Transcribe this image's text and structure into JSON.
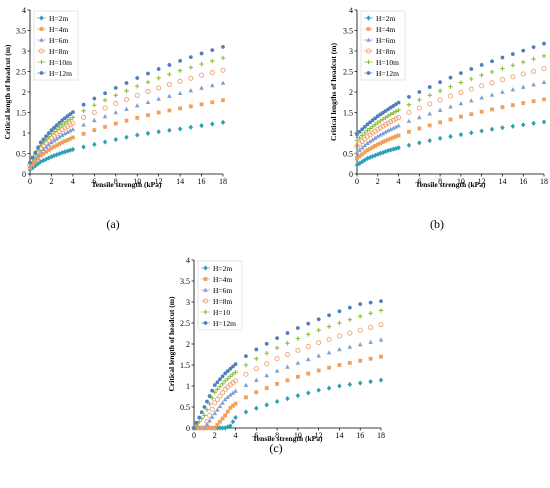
{
  "chart_data": [
    {
      "type": "scatter",
      "panel_label": "(a)",
      "xlabel": "Tensile strength (kPa)",
      "ylabel": "Critical length of headcut (m)",
      "xlim": [
        0,
        18
      ],
      "ylim": [
        0,
        4
      ],
      "xticks": [
        "0",
        "2",
        "4",
        "6",
        "8",
        "10",
        "12",
        "14",
        "16",
        "18"
      ],
      "yticks": [
        "0",
        "0.5",
        "1",
        "1.5",
        "2",
        "2.5",
        "3",
        "3.5",
        "4"
      ],
      "grid": false,
      "legend_position": "top-left",
      "x": [
        0,
        1,
        2,
        3,
        4,
        5,
        6,
        8,
        10,
        12,
        14,
        16,
        18
      ],
      "series": [
        {
          "name": "H=2m",
          "color": "#2e9fb5",
          "marker": "diamond",
          "values": [
            0.1,
            0.3,
            0.42,
            0.52,
            0.6,
            0.66,
            0.72,
            0.84,
            0.95,
            1.03,
            1.1,
            1.18,
            1.26
          ]
        },
        {
          "name": "H=4m",
          "color": "#f0a05a",
          "marker": "square",
          "values": [
            0.15,
            0.45,
            0.63,
            0.77,
            0.89,
            0.98,
            1.07,
            1.23,
            1.37,
            1.5,
            1.6,
            1.7,
            1.8
          ]
        },
        {
          "name": "H=6m",
          "color": "#7f9fd2",
          "marker": "triangle",
          "values": [
            0.2,
            0.55,
            0.77,
            0.95,
            1.09,
            1.2,
            1.31,
            1.5,
            1.67,
            1.83,
            1.97,
            2.1,
            2.22
          ]
        },
        {
          "name": "H=8m",
          "color": "#f2a070",
          "marker": "circle",
          "values": [
            0.23,
            0.63,
            0.88,
            1.08,
            1.24,
            1.38,
            1.5,
            1.72,
            1.92,
            2.1,
            2.26,
            2.41,
            2.53
          ]
        },
        {
          "name": "H=10m",
          "color": "#8fbc3c",
          "marker": "plus",
          "values": [
            0.26,
            0.7,
            0.98,
            1.2,
            1.38,
            1.54,
            1.68,
            1.92,
            2.14,
            2.34,
            2.52,
            2.68,
            2.83
          ]
        },
        {
          "name": "H=12m",
          "color": "#4f7fbd",
          "marker": "dot",
          "values": [
            0.28,
            0.77,
            1.07,
            1.31,
            1.51,
            1.69,
            1.84,
            2.1,
            2.34,
            2.56,
            2.76,
            2.94,
            3.1
          ]
        }
      ]
    },
    {
      "type": "scatter",
      "panel_label": "(b)",
      "xlabel": "Tensile strength (kPa)",
      "ylabel": "Critical lengths of headcut (m)",
      "xlim": [
        0,
        18
      ],
      "ylim": [
        0,
        4
      ],
      "xticks": [
        "0",
        "2",
        "4",
        "6",
        "8",
        "10",
        "12",
        "14",
        "16",
        "18"
      ],
      "yticks": [
        "0",
        "0.5",
        "1",
        "1.5",
        "2",
        "2.5",
        "3",
        "3.5",
        "4"
      ],
      "grid": false,
      "legend_position": "top-left",
      "x": [
        0,
        1,
        2,
        3,
        4,
        5,
        6,
        8,
        10,
        12,
        14,
        16,
        18
      ],
      "series": [
        {
          "name": "H=2m",
          "color": "#2e9fb5",
          "marker": "diamond",
          "values": [
            0.22,
            0.38,
            0.48,
            0.57,
            0.64,
            0.7,
            0.76,
            0.87,
            0.96,
            1.05,
            1.13,
            1.2,
            1.27
          ]
        },
        {
          "name": "H=4m",
          "color": "#f0a05a",
          "marker": "square",
          "values": [
            0.38,
            0.58,
            0.72,
            0.84,
            0.94,
            1.03,
            1.11,
            1.26,
            1.4,
            1.52,
            1.63,
            1.73,
            1.82
          ]
        },
        {
          "name": "H=6m",
          "color": "#7f9fd2",
          "marker": "triangle",
          "values": [
            0.53,
            0.75,
            0.92,
            1.06,
            1.18,
            1.29,
            1.38,
            1.56,
            1.72,
            1.86,
            2.0,
            2.12,
            2.24
          ]
        },
        {
          "name": "H=8m",
          "color": "#f2a070",
          "marker": "circle",
          "values": [
            0.68,
            0.91,
            1.09,
            1.24,
            1.38,
            1.5,
            1.61,
            1.81,
            1.99,
            2.15,
            2.3,
            2.44,
            2.57
          ]
        },
        {
          "name": "H=10m",
          "color": "#8fbc3c",
          "marker": "plus",
          "values": [
            0.82,
            1.06,
            1.25,
            1.42,
            1.56,
            1.69,
            1.81,
            2.03,
            2.23,
            2.41,
            2.57,
            2.73,
            2.88
          ]
        },
        {
          "name": "H=12m",
          "color": "#4f7fbd",
          "marker": "dot",
          "values": [
            0.97,
            1.21,
            1.41,
            1.58,
            1.74,
            1.88,
            2.0,
            2.24,
            2.46,
            2.66,
            2.84,
            3.01,
            3.18
          ]
        }
      ]
    },
    {
      "type": "scatter",
      "panel_label": "(c)",
      "xlabel": "Tensile strength (kPa)",
      "ylabel": "Critical length of headcut (m)",
      "xlim": [
        0,
        18
      ],
      "ylim": [
        0,
        4
      ],
      "xticks": [
        "0",
        "2",
        "4",
        "6",
        "8",
        "10",
        "12",
        "14",
        "16",
        "18"
      ],
      "yticks": [
        "0",
        "0.5",
        "1",
        "1.5",
        "2",
        "2.5",
        "3",
        "3.5",
        "4"
      ],
      "grid": false,
      "legend_position": "top-left",
      "x": [
        0,
        1,
        2,
        3,
        3.5,
        4,
        5,
        6,
        8,
        10,
        12,
        14,
        16,
        18
      ],
      "series": [
        {
          "name": "H=2m",
          "color": "#2e9fb5",
          "marker": "diamond",
          "values": [
            0,
            0,
            0,
            0,
            0.05,
            0.25,
            0.38,
            0.47,
            0.63,
            0.77,
            0.9,
            1.0,
            1.07,
            1.14
          ]
        },
        {
          "name": "H=4m",
          "color": "#f0a05a",
          "marker": "square",
          "values": [
            0,
            0,
            0,
            0.3,
            0.48,
            0.58,
            0.73,
            0.85,
            1.05,
            1.22,
            1.37,
            1.5,
            1.6,
            1.7
          ]
        },
        {
          "name": "H=6m",
          "color": "#7f9fd2",
          "marker": "triangle",
          "values": [
            0,
            0,
            0.35,
            0.68,
            0.79,
            0.88,
            1.02,
            1.14,
            1.36,
            1.55,
            1.72,
            1.87,
            1.99,
            2.1
          ]
        },
        {
          "name": "H=8m",
          "color": "#f2a070",
          "marker": "circle",
          "values": [
            0,
            0,
            0.6,
            0.92,
            1.03,
            1.12,
            1.28,
            1.41,
            1.65,
            1.85,
            2.03,
            2.19,
            2.33,
            2.46
          ]
        },
        {
          "name": "H=10",
          "color": "#8fbc3c",
          "marker": "plus",
          "values": [
            0,
            0.3,
            0.85,
            1.12,
            1.23,
            1.33,
            1.5,
            1.65,
            1.91,
            2.13,
            2.33,
            2.5,
            2.66,
            2.8
          ]
        },
        {
          "name": "H=12m",
          "color": "#4f7fbd",
          "marker": "dot",
          "values": [
            0,
            0.5,
            1.02,
            1.3,
            1.41,
            1.52,
            1.71,
            1.87,
            2.14,
            2.38,
            2.59,
            2.78,
            2.95,
            3.02
          ]
        }
      ]
    }
  ]
}
